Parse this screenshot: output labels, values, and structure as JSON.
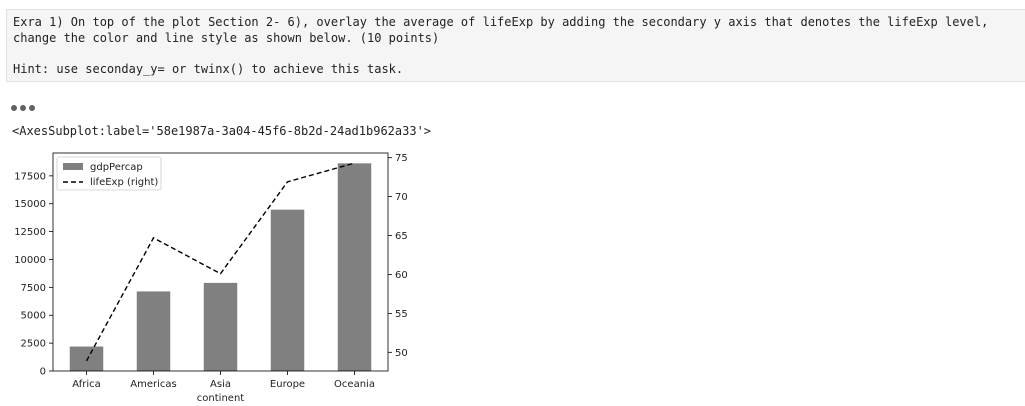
{
  "markdown": {
    "lines": [
      "Exra 1) On top of the plot Section 2- 6), overlay the average of lifeExp by adding the secondary y axis that denotes the lifeExp level,",
      "change the color and line style as shown below. (10 points)",
      "",
      "Hint: use seconday_y= or twinx() to achieve this task."
    ]
  },
  "output": {
    "text": "<AxesSubplot:label='58e1987a-3a04-45f6-8b2d-24ad1b962a33'>"
  },
  "chart_data": {
    "type": "bar",
    "xlabel": "continent",
    "ylabel": "",
    "categories": [
      "Africa",
      "Americas",
      "Asia",
      "Europe",
      "Oceania"
    ],
    "series": [
      {
        "name": "gdpPercap",
        "axis": "left",
        "type": "bar",
        "color": "#808080",
        "values": [
          2194,
          7136,
          7902,
          14469,
          18622
        ]
      },
      {
        "name": "lifeExp (right)",
        "axis": "right",
        "type": "line",
        "color": "#000000",
        "line_style": "dashed",
        "values": [
          48.9,
          64.7,
          60.1,
          71.9,
          74.3
        ]
      }
    ],
    "y_left": {
      "ticks": [
        0,
        2500,
        5000,
        7500,
        10000,
        12500,
        15000,
        17500
      ],
      "lim": [
        0,
        19550
      ]
    },
    "y_right": {
      "ticks": [
        50,
        55,
        60,
        65,
        70,
        75
      ],
      "lim": [
        47.6,
        75.6
      ]
    },
    "grid": false,
    "legend_position": "top-left"
  }
}
